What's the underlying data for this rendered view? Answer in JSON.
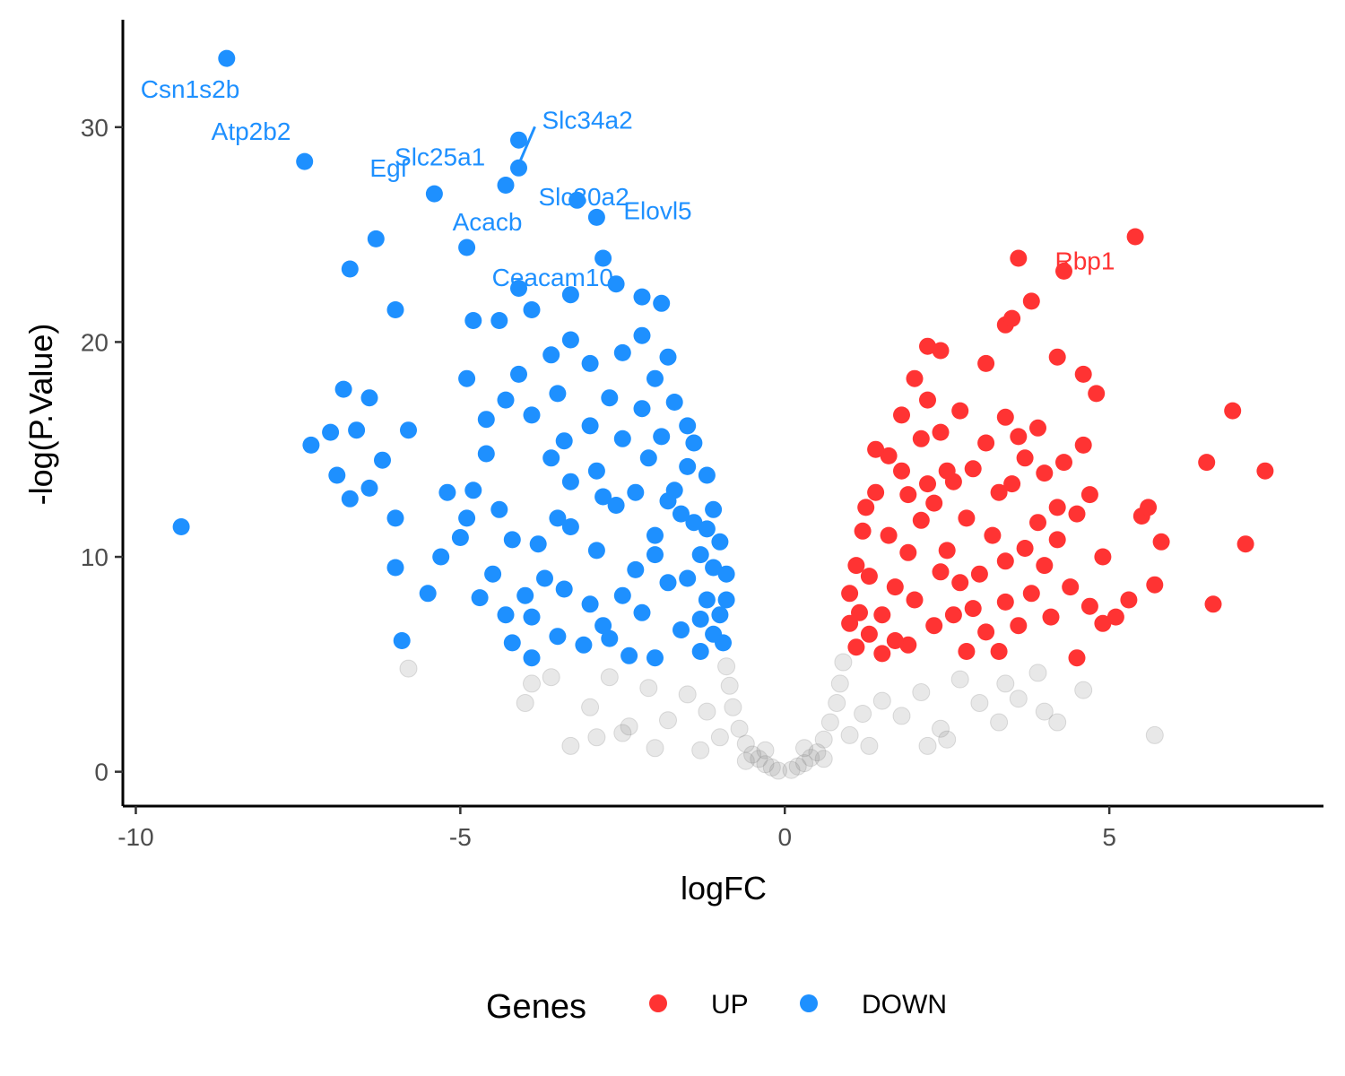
{
  "chart_data": {
    "type": "scatter",
    "title": "",
    "xlabel": "logFC",
    "ylabel": "-log(P.Value)",
    "xlim": [
      -10.2,
      8.3
    ],
    "ylim": [
      -1.6,
      35.0
    ],
    "x_ticks": [
      -10,
      -5,
      0,
      5
    ],
    "x_tick_labels": [
      "-10",
      "-5",
      "0",
      "5"
    ],
    "y_ticks": [
      0,
      10,
      20,
      30
    ],
    "y_tick_labels": [
      "0",
      "10",
      "20",
      "30"
    ],
    "grid": false,
    "legend": {
      "title": "Genes",
      "placement": "bottom",
      "entries": [
        {
          "label": "UP",
          "color": "#FF3333"
        },
        {
          "label": "DOWN",
          "color": "#1E90FF"
        }
      ]
    },
    "colors": {
      "UP": "#FF3333",
      "DOWN": "#1E90FF",
      "NS": "#808080"
    },
    "series": [
      {
        "name": "DOWN",
        "points": [
          [
            -8.6,
            33.2
          ],
          [
            -7.4,
            28.4
          ],
          [
            -5.4,
            26.9
          ],
          [
            -4.3,
            27.3
          ],
          [
            -4.1,
            28.1
          ],
          [
            -4.1,
            29.4
          ],
          [
            -3.2,
            26.6
          ],
          [
            -2.9,
            25.8
          ],
          [
            -4.9,
            24.4
          ],
          [
            -6.3,
            24.8
          ],
          [
            -6.7,
            23.4
          ],
          [
            -4.1,
            22.5
          ],
          [
            -6.0,
            21.5
          ],
          [
            -4.8,
            21.0
          ],
          [
            -3.9,
            21.5
          ],
          [
            -2.6,
            22.7
          ],
          [
            -2.2,
            22.1
          ],
          [
            -1.9,
            21.8
          ],
          [
            -4.4,
            21.0
          ],
          [
            -3.3,
            22.2
          ],
          [
            -3.6,
            19.4
          ],
          [
            -3.0,
            19.0
          ],
          [
            -4.1,
            18.5
          ],
          [
            -4.9,
            18.3
          ],
          [
            -7.3,
            15.2
          ],
          [
            -6.8,
            17.8
          ],
          [
            -6.4,
            17.4
          ],
          [
            -5.8,
            15.9
          ],
          [
            -7.0,
            15.8
          ],
          [
            -6.6,
            15.9
          ],
          [
            -9.3,
            11.4
          ],
          [
            -6.0,
            9.5
          ],
          [
            -5.5,
            8.3
          ],
          [
            -5.9,
            6.1
          ],
          [
            -6.9,
            13.8
          ],
          [
            -6.7,
            12.7
          ],
          [
            -6.2,
            14.5
          ],
          [
            -6.4,
            13.2
          ],
          [
            -6.0,
            11.8
          ],
          [
            -5.2,
            13.0
          ],
          [
            -4.9,
            11.8
          ],
          [
            -4.4,
            12.2
          ],
          [
            -4.2,
            10.8
          ],
          [
            -3.8,
            10.6
          ],
          [
            -4.5,
            9.2
          ],
          [
            -4.7,
            8.1
          ],
          [
            -4.3,
            7.3
          ],
          [
            -3.9,
            7.2
          ],
          [
            -4.2,
            6.0
          ],
          [
            -3.9,
            5.3
          ],
          [
            -3.5,
            6.3
          ],
          [
            -3.1,
            5.9
          ],
          [
            -2.8,
            6.8
          ],
          [
            -2.5,
            8.2
          ],
          [
            -2.3,
            9.4
          ],
          [
            -2.0,
            11.0
          ],
          [
            -1.8,
            12.6
          ],
          [
            -1.5,
            14.2
          ],
          [
            -1.3,
            10.1
          ],
          [
            -1.2,
            8.0
          ],
          [
            -1.1,
            6.4
          ],
          [
            -1.0,
            7.3
          ],
          [
            -1.3,
            5.6
          ],
          [
            -1.6,
            6.6
          ],
          [
            -2.0,
            5.3
          ],
          [
            -2.4,
            5.4
          ],
          [
            -3.3,
            13.5
          ],
          [
            -3.6,
            14.6
          ],
          [
            -3.0,
            16.1
          ],
          [
            -2.7,
            17.4
          ],
          [
            -2.2,
            16.9
          ],
          [
            -2.0,
            18.3
          ],
          [
            -1.7,
            17.2
          ],
          [
            -1.5,
            16.1
          ],
          [
            -1.4,
            15.3
          ],
          [
            -1.2,
            13.8
          ],
          [
            -1.1,
            12.2
          ],
          [
            -1.0,
            10.7
          ],
          [
            -0.9,
            9.2
          ],
          [
            -0.9,
            8.0
          ],
          [
            -1.1,
            9.5
          ],
          [
            -1.4,
            11.6
          ],
          [
            -1.7,
            13.1
          ],
          [
            -2.1,
            14.6
          ],
          [
            -2.5,
            15.5
          ],
          [
            -2.9,
            14.0
          ],
          [
            -3.3,
            11.4
          ],
          [
            -3.7,
            9.0
          ],
          [
            -4.0,
            8.2
          ],
          [
            -3.4,
            8.5
          ],
          [
            -2.9,
            10.3
          ],
          [
            -2.6,
            12.4
          ],
          [
            -2.3,
            13.0
          ],
          [
            -1.9,
            15.6
          ],
          [
            -1.6,
            12.0
          ],
          [
            -1.3,
            7.1
          ],
          [
            -1.8,
            8.8
          ],
          [
            -2.2,
            7.4
          ],
          [
            -2.7,
            6.2
          ],
          [
            -3.0,
            7.8
          ],
          [
            -3.5,
            11.8
          ],
          [
            -4.6,
            14.8
          ],
          [
            -5.3,
            10.0
          ],
          [
            -5.0,
            10.9
          ],
          [
            -4.8,
            13.1
          ],
          [
            -4.6,
            16.4
          ],
          [
            -4.3,
            17.3
          ],
          [
            -3.9,
            16.6
          ],
          [
            -3.5,
            17.6
          ],
          [
            -3.3,
            20.1
          ],
          [
            -2.5,
            19.5
          ],
          [
            -2.2,
            20.3
          ],
          [
            -1.8,
            19.3
          ],
          [
            -2.8,
            23.9
          ],
          [
            -3.4,
            15.4
          ],
          [
            -2.8,
            12.8
          ],
          [
            -1.2,
            11.3
          ],
          [
            -0.95,
            6.0
          ],
          [
            -1.5,
            9.0
          ],
          [
            -2.0,
            10.1
          ]
        ]
      },
      {
        "name": "UP",
        "points": [
          [
            5.4,
            24.9
          ],
          [
            4.3,
            23.3
          ],
          [
            3.6,
            23.9
          ],
          [
            3.8,
            21.9
          ],
          [
            3.4,
            20.8
          ],
          [
            3.5,
            21.1
          ],
          [
            2.2,
            19.8
          ],
          [
            2.4,
            19.6
          ],
          [
            3.1,
            19.0
          ],
          [
            4.2,
            19.3
          ],
          [
            4.6,
            18.5
          ],
          [
            4.8,
            17.6
          ],
          [
            6.9,
            16.8
          ],
          [
            7.4,
            14.0
          ],
          [
            6.5,
            14.4
          ],
          [
            7.1,
            10.6
          ],
          [
            6.6,
            7.8
          ],
          [
            5.8,
            10.7
          ],
          [
            5.7,
            8.7
          ],
          [
            5.5,
            11.9
          ],
          [
            5.6,
            12.3
          ],
          [
            5.3,
            8.0
          ],
          [
            5.1,
            7.2
          ],
          [
            4.9,
            6.9
          ],
          [
            4.5,
            5.3
          ],
          [
            4.6,
            15.2
          ],
          [
            4.3,
            14.4
          ],
          [
            4.7,
            12.9
          ],
          [
            4.2,
            12.3
          ],
          [
            4.9,
            10.0
          ],
          [
            3.9,
            16.0
          ],
          [
            3.6,
            15.6
          ],
          [
            3.4,
            16.5
          ],
          [
            3.1,
            15.3
          ],
          [
            2.9,
            14.1
          ],
          [
            2.6,
            13.5
          ],
          [
            2.4,
            15.8
          ],
          [
            2.2,
            17.3
          ],
          [
            2.0,
            18.3
          ],
          [
            1.8,
            16.6
          ],
          [
            1.6,
            14.7
          ],
          [
            1.4,
            13.0
          ],
          [
            1.2,
            11.2
          ],
          [
            1.1,
            9.6
          ],
          [
            1.0,
            8.3
          ],
          [
            1.0,
            6.9
          ],
          [
            1.1,
            5.8
          ],
          [
            1.3,
            6.4
          ],
          [
            1.5,
            7.3
          ],
          [
            1.7,
            8.6
          ],
          [
            1.9,
            10.2
          ],
          [
            2.1,
            11.7
          ],
          [
            2.3,
            12.5
          ],
          [
            2.5,
            10.3
          ],
          [
            2.7,
            8.8
          ],
          [
            2.9,
            7.6
          ],
          [
            3.1,
            6.5
          ],
          [
            3.3,
            5.6
          ],
          [
            3.6,
            6.8
          ],
          [
            3.8,
            8.3
          ],
          [
            4.0,
            9.6
          ],
          [
            4.2,
            10.8
          ],
          [
            4.4,
            8.6
          ],
          [
            4.7,
            7.7
          ],
          [
            3.9,
            11.6
          ],
          [
            3.5,
            13.4
          ],
          [
            3.2,
            11.0
          ],
          [
            2.8,
            11.8
          ],
          [
            2.5,
            14.0
          ],
          [
            2.2,
            13.4
          ],
          [
            1.9,
            12.9
          ],
          [
            1.6,
            11.0
          ],
          [
            1.3,
            9.1
          ],
          [
            1.15,
            7.4
          ],
          [
            1.5,
            5.5
          ],
          [
            1.9,
            5.9
          ],
          [
            2.3,
            6.8
          ],
          [
            2.6,
            7.3
          ],
          [
            3.0,
            9.2
          ],
          [
            3.4,
            9.8
          ],
          [
            3.7,
            10.4
          ],
          [
            4.1,
            7.2
          ],
          [
            3.4,
            7.9
          ],
          [
            2.0,
            8.0
          ],
          [
            1.7,
            6.1
          ],
          [
            1.25,
            12.3
          ],
          [
            1.4,
            15.0
          ],
          [
            1.8,
            14.0
          ],
          [
            2.1,
            15.5
          ],
          [
            2.7,
            16.8
          ],
          [
            3.3,
            13.0
          ],
          [
            3.7,
            14.6
          ],
          [
            4.0,
            13.9
          ],
          [
            4.5,
            12.0
          ],
          [
            2.4,
            9.3
          ],
          [
            2.8,
            5.6
          ]
        ]
      },
      {
        "name": "NS",
        "points": [
          [
            -0.1,
            0.05
          ],
          [
            0.1,
            0.08
          ],
          [
            -0.2,
            0.2
          ],
          [
            0.2,
            0.25
          ],
          [
            -0.3,
            0.35
          ],
          [
            0.3,
            0.4
          ],
          [
            -0.4,
            0.6
          ],
          [
            0.4,
            0.65
          ],
          [
            -0.5,
            0.8
          ],
          [
            0.5,
            0.9
          ],
          [
            -0.6,
            1.3
          ],
          [
            0.6,
            1.5
          ],
          [
            -0.7,
            2.0
          ],
          [
            0.7,
            2.3
          ],
          [
            -0.8,
            3.0
          ],
          [
            0.8,
            3.2
          ],
          [
            -0.85,
            4.0
          ],
          [
            0.85,
            4.1
          ],
          [
            -0.9,
            4.9
          ],
          [
            0.9,
            5.1
          ],
          [
            -1.2,
            2.8
          ],
          [
            1.2,
            2.7
          ],
          [
            -1.5,
            3.6
          ],
          [
            1.5,
            3.3
          ],
          [
            -1.8,
            2.4
          ],
          [
            1.8,
            2.6
          ],
          [
            -2.1,
            3.9
          ],
          [
            2.1,
            3.7
          ],
          [
            -2.4,
            2.1
          ],
          [
            2.4,
            2.0
          ],
          [
            -2.7,
            4.4
          ],
          [
            2.7,
            4.3
          ],
          [
            -3.0,
            3.0
          ],
          [
            3.0,
            3.2
          ],
          [
            -3.3,
            1.2
          ],
          [
            3.3,
            2.3
          ],
          [
            -3.6,
            4.4
          ],
          [
            3.6,
            3.4
          ],
          [
            -3.9,
            4.1
          ],
          [
            3.9,
            4.6
          ],
          [
            -4.0,
            3.2
          ],
          [
            4.0,
            2.8
          ],
          [
            -5.8,
            4.8
          ],
          [
            5.7,
            1.7
          ],
          [
            4.6,
            3.8
          ],
          [
            4.2,
            2.3
          ],
          [
            3.4,
            4.1
          ],
          [
            -2.9,
            1.6
          ],
          [
            -0.3,
            1.0
          ],
          [
            0.3,
            1.1
          ],
          [
            -0.6,
            0.5
          ],
          [
            0.6,
            0.6
          ],
          [
            -1.0,
            1.6
          ],
          [
            1.0,
            1.7
          ],
          [
            -1.3,
            1.0
          ],
          [
            1.3,
            1.2
          ],
          [
            -2.5,
            1.8
          ],
          [
            2.5,
            1.5
          ],
          [
            -2.0,
            1.1
          ],
          [
            2.2,
            1.2
          ]
        ]
      }
    ],
    "labels": [
      {
        "text": "Csn1s2b",
        "x": -8.6,
        "y": 33.2,
        "series": "DOWN"
      },
      {
        "text": "Atp2b2",
        "x": -7.4,
        "y": 28.4,
        "series": "DOWN"
      },
      {
        "text": "Slc25a1",
        "x": -4.3,
        "y": 27.3,
        "series": "DOWN"
      },
      {
        "text": "Slc34a2",
        "x": -4.1,
        "y": 28.1,
        "series": "DOWN"
      },
      {
        "text": "Egf",
        "x": -5.4,
        "y": 26.9,
        "series": "DOWN"
      },
      {
        "text": "Slc30a2",
        "x": -4.1,
        "y": 29.4,
        "series": "DOWN"
      },
      {
        "text": "Acacb",
        "x": -4.9,
        "y": 24.4,
        "series": "DOWN"
      },
      {
        "text": "Elovl5",
        "x": -2.9,
        "y": 25.8,
        "series": "DOWN"
      },
      {
        "text": "Ceacam10",
        "x": -2.8,
        "y": 23.9,
        "series": "DOWN"
      },
      {
        "text": "Rbp1",
        "x": 4.3,
        "y": 23.3,
        "series": "UP"
      }
    ]
  }
}
